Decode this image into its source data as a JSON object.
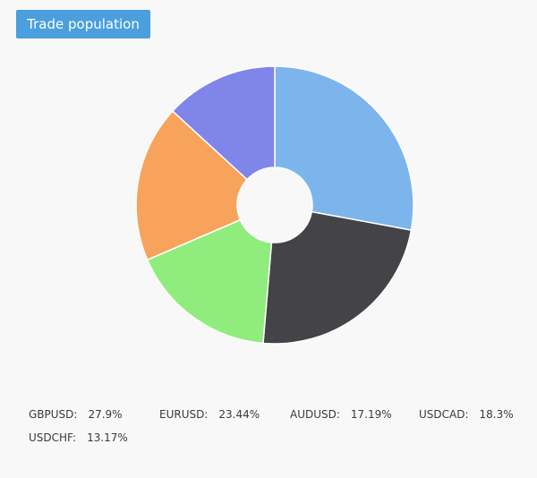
{
  "header": {
    "tab_label": "Trade population"
  },
  "chart_data": {
    "type": "pie",
    "donut": true,
    "title": "",
    "slices": [
      {
        "label": "GBPUSD",
        "value": 27.9,
        "display": "27.9%",
        "color": "#7cb5ec"
      },
      {
        "label": "EURUSD",
        "value": 23.44,
        "display": "23.44%",
        "color": "#434348"
      },
      {
        "label": "AUDUSD",
        "value": 17.19,
        "display": "17.19%",
        "color": "#90ed7d"
      },
      {
        "label": "USDCAD",
        "value": 18.3,
        "display": "18.3%",
        "color": "#f7a35c"
      },
      {
        "label": "USDCHF",
        "value": 13.17,
        "display": "13.17%",
        "color": "#8085e9"
      }
    ],
    "legend_position": "bottom"
  }
}
